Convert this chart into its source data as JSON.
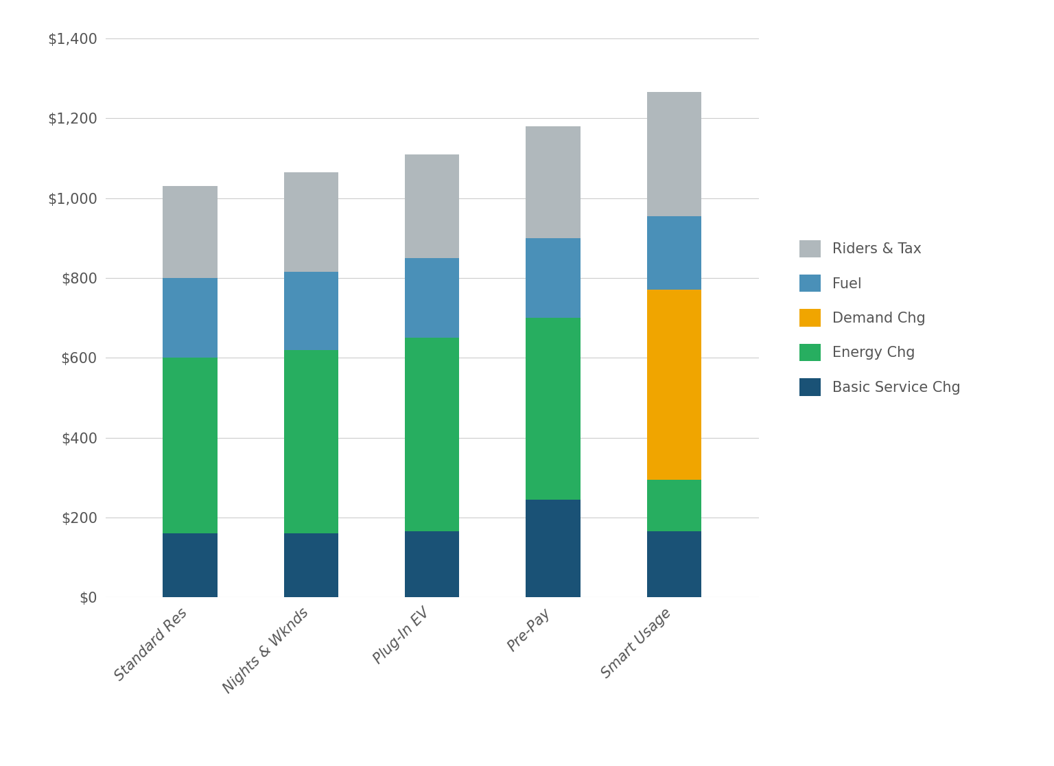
{
  "categories": [
    "Standard Res",
    "Nights & Wknds",
    "Plug-In EV",
    "Pre-Pay",
    "Smart Usage"
  ],
  "series": [
    {
      "name": "Basic Service Chg",
      "values": [
        160,
        160,
        165,
        245,
        165
      ],
      "color": "#1a5276"
    },
    {
      "name": "Energy Chg",
      "values": [
        440,
        460,
        485,
        455,
        130
      ],
      "color": "#27ae60"
    },
    {
      "name": "Demand Chg",
      "values": [
        0,
        0,
        0,
        0,
        475
      ],
      "color": "#f0a500"
    },
    {
      "name": "Fuel",
      "values": [
        200,
        195,
        200,
        200,
        185
      ],
      "color": "#4a90b8"
    },
    {
      "name": "Riders & Tax",
      "values": [
        230,
        250,
        260,
        280,
        310
      ],
      "color": "#b0b8bc"
    }
  ],
  "ylim": [
    0,
    1400
  ],
  "yticks": [
    0,
    200,
    400,
    600,
    800,
    1000,
    1200,
    1400
  ],
  "background_color": "#ffffff",
  "grid_color": "#cccccc",
  "bar_width": 0.45,
  "legend_fontsize": 15,
  "tick_fontsize": 15,
  "tick_color": "#555555"
}
